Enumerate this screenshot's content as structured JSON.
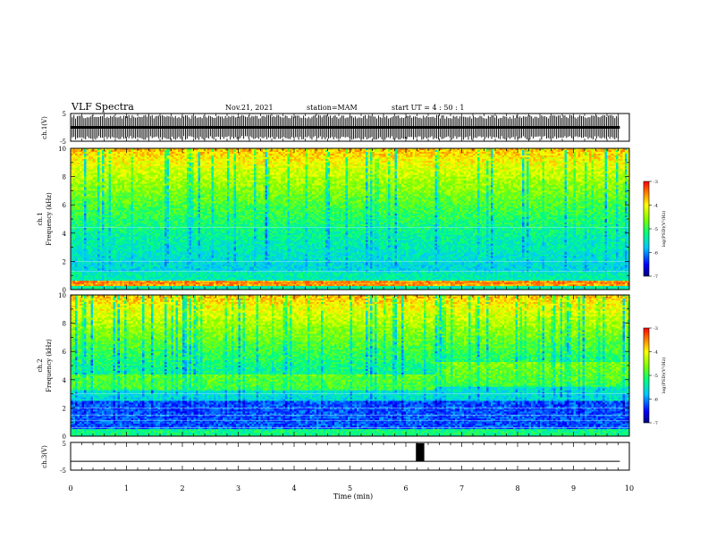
{
  "header": {
    "title": "VLF Spectra",
    "date": "Nov.21, 2021",
    "station": "station=MAM",
    "start": "start  UT =   4 : 50 : 1"
  },
  "chart_data": [
    {
      "type": "line",
      "panel": "ch1-waveform",
      "ylabel": "ch.1(V)",
      "ylim": [
        -5,
        5
      ],
      "yticks": [
        "5",
        "-5"
      ],
      "xlim": [
        0,
        10
      ],
      "description_values": {
        "signal_amplitude_approx": [
          -4.5,
          4.5
        ]
      }
    },
    {
      "type": "heatmap",
      "panel": "ch1-spectrogram",
      "ylabel_line1": "ch.1",
      "ylabel_line2": "Frequency (kHz)",
      "ylim": [
        0,
        10
      ],
      "yticks": [
        "0",
        "2",
        "4",
        "6",
        "8",
        "10"
      ],
      "xlim": [
        0,
        9.83
      ],
      "colorbar": {
        "label": "log(PSD)(V²/Hz)",
        "range": [
          -7,
          -3
        ],
        "ticks": [
          "-3",
          "-4",
          "-5",
          "-6",
          "-7"
        ]
      }
    },
    {
      "type": "heatmap",
      "panel": "ch2-spectrogram",
      "ylabel_line1": "ch.2",
      "ylabel_line2": "Frequency (kHz)",
      "ylim": [
        0,
        10
      ],
      "yticks": [
        "0",
        "2",
        "4",
        "6",
        "8",
        "10"
      ],
      "xlim": [
        0,
        9.83
      ],
      "colorbar": {
        "label": "log(PSD)(V²/Hz)",
        "range": [
          -7,
          -3
        ],
        "ticks": [
          "-3",
          "-4",
          "-5",
          "-6",
          "-7"
        ]
      }
    },
    {
      "type": "line",
      "panel": "ch3-waveform",
      "ylabel": "ch.3(V)",
      "ylim": [
        -5,
        5
      ],
      "yticks": [
        "5",
        "-5"
      ],
      "xlim": [
        0,
        10
      ],
      "baseline": -1.8,
      "pulse": {
        "x_start": 6.18,
        "x_end": 6.33,
        "low": -1.8,
        "high": 4.7
      },
      "xlabel": "Time (min)",
      "xticks": [
        "0",
        "1",
        "2",
        "3",
        "4",
        "5",
        "6",
        "7",
        "8",
        "9",
        "10"
      ]
    }
  ]
}
